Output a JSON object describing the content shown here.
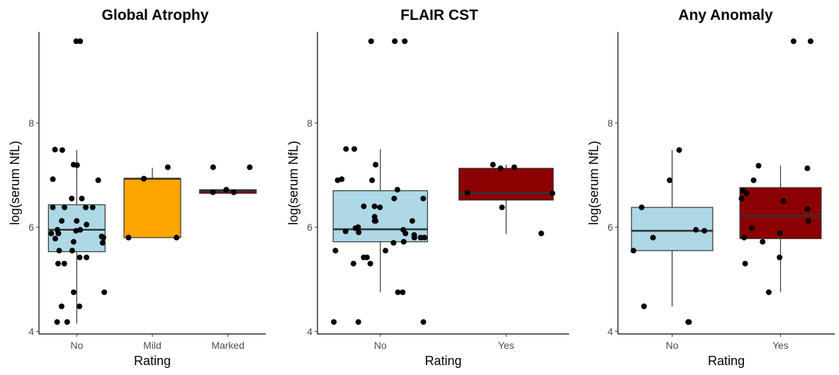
{
  "chart_data": [
    {
      "type": "box",
      "title": "Global Atrophy",
      "xlabel": "Rating",
      "ylabel": "log(serum NfL)",
      "ylim": [
        3.95,
        9.75
      ],
      "yticks": [
        4,
        6,
        8
      ],
      "grid": false,
      "categories": [
        "No",
        "Mild",
        "Marked"
      ],
      "boxes": [
        {
          "category": "No",
          "fill": "#add8e6",
          "whisker_low": 4.15,
          "q1": 5.53,
          "median": 5.95,
          "q3": 6.43,
          "whisker_high": 7.48
        },
        {
          "category": "Mild",
          "fill": "#ffa500",
          "whisker_low": 5.8,
          "q1": 5.8,
          "median": 6.93,
          "q3": 6.93,
          "whisker_high": 7.14
        },
        {
          "category": "Marked",
          "fill": "#8b0000",
          "whisker_low": 6.65,
          "q1": 6.65,
          "median": 6.7,
          "q3": 6.72,
          "whisker_high": 6.72
        }
      ],
      "points": [
        {
          "x": 1,
          "y": 9.57
        },
        {
          "x": 1,
          "y": 9.57
        },
        {
          "x": 1,
          "y": 7.49
        },
        {
          "x": 1,
          "y": 7.48
        },
        {
          "x": 1,
          "y": 7.2
        },
        {
          "x": 1,
          "y": 7.19
        },
        {
          "x": 1,
          "y": 6.92
        },
        {
          "x": 1,
          "y": 6.9
        },
        {
          "x": 1,
          "y": 6.55
        },
        {
          "x": 1,
          "y": 6.55
        },
        {
          "x": 1,
          "y": 6.38
        },
        {
          "x": 1,
          "y": 6.38
        },
        {
          "x": 1,
          "y": 6.38
        },
        {
          "x": 1,
          "y": 6.38
        },
        {
          "x": 1,
          "y": 6.12
        },
        {
          "x": 1,
          "y": 6.12
        },
        {
          "x": 1,
          "y": 6.05
        },
        {
          "x": 1,
          "y": 5.95
        },
        {
          "x": 1,
          "y": 5.95
        },
        {
          "x": 1,
          "y": 5.93
        },
        {
          "x": 1,
          "y": 5.88
        },
        {
          "x": 1,
          "y": 5.88
        },
        {
          "x": 1,
          "y": 5.82
        },
        {
          "x": 1,
          "y": 5.8
        },
        {
          "x": 1,
          "y": 5.78
        },
        {
          "x": 1,
          "y": 5.72
        },
        {
          "x": 1,
          "y": 5.7
        },
        {
          "x": 1,
          "y": 5.55
        },
        {
          "x": 1,
          "y": 5.55
        },
        {
          "x": 1,
          "y": 5.42
        },
        {
          "x": 1,
          "y": 5.42
        },
        {
          "x": 1,
          "y": 5.3
        },
        {
          "x": 1,
          "y": 5.3
        },
        {
          "x": 1,
          "y": 4.75
        },
        {
          "x": 1,
          "y": 4.75
        },
        {
          "x": 1,
          "y": 4.48
        },
        {
          "x": 1,
          "y": 4.48
        },
        {
          "x": 1,
          "y": 4.18
        },
        {
          "x": 1,
          "y": 4.18
        },
        {
          "x": 2,
          "y": 7.15
        },
        {
          "x": 2,
          "y": 6.93
        },
        {
          "x": 2,
          "y": 6.93
        },
        {
          "x": 2,
          "y": 5.8
        },
        {
          "x": 2,
          "y": 5.8
        },
        {
          "x": 3,
          "y": 7.15
        },
        {
          "x": 3,
          "y": 7.15
        },
        {
          "x": 3,
          "y": 6.72
        },
        {
          "x": 3,
          "y": 6.67
        },
        {
          "x": 3,
          "y": 6.67
        }
      ]
    },
    {
      "type": "box",
      "title": "FLAIR CST",
      "xlabel": "Rating",
      "ylabel": "log(serum NfL)",
      "ylim": [
        3.95,
        9.75
      ],
      "yticks": [
        4,
        6,
        8
      ],
      "grid": false,
      "categories": [
        "No",
        "Yes"
      ],
      "boxes": [
        {
          "category": "No",
          "fill": "#add8e6",
          "whisker_low": 4.75,
          "q1": 5.72,
          "median": 5.96,
          "q3": 6.7,
          "whisker_high": 7.5
        },
        {
          "category": "Yes",
          "fill": "#8b0000",
          "whisker_low": 5.87,
          "q1": 6.52,
          "median": 6.65,
          "q3": 7.13,
          "whisker_high": 7.2
        }
      ],
      "points": [
        {
          "x": 1,
          "y": 9.57
        },
        {
          "x": 1,
          "y": 9.57
        },
        {
          "x": 1,
          "y": 9.57
        },
        {
          "x": 1,
          "y": 7.5
        },
        {
          "x": 1,
          "y": 7.5
        },
        {
          "x": 1,
          "y": 7.2
        },
        {
          "x": 1,
          "y": 6.92
        },
        {
          "x": 1,
          "y": 6.9
        },
        {
          "x": 1,
          "y": 6.9
        },
        {
          "x": 1,
          "y": 6.72
        },
        {
          "x": 1,
          "y": 6.55
        },
        {
          "x": 1,
          "y": 6.55
        },
        {
          "x": 1,
          "y": 6.4
        },
        {
          "x": 1,
          "y": 6.4
        },
        {
          "x": 1,
          "y": 6.38
        },
        {
          "x": 1,
          "y": 6.2
        },
        {
          "x": 1,
          "y": 6.12
        },
        {
          "x": 1,
          "y": 6.12
        },
        {
          "x": 1,
          "y": 6.12
        },
        {
          "x": 1,
          "y": 6.0
        },
        {
          "x": 1,
          "y": 5.98
        },
        {
          "x": 1,
          "y": 5.95
        },
        {
          "x": 1,
          "y": 5.92
        },
        {
          "x": 1,
          "y": 5.9
        },
        {
          "x": 1,
          "y": 5.88
        },
        {
          "x": 1,
          "y": 5.85
        },
        {
          "x": 1,
          "y": 5.8
        },
        {
          "x": 1,
          "y": 5.8
        },
        {
          "x": 1,
          "y": 5.8
        },
        {
          "x": 1,
          "y": 5.72
        },
        {
          "x": 1,
          "y": 5.7
        },
        {
          "x": 1,
          "y": 5.55
        },
        {
          "x": 1,
          "y": 5.55
        },
        {
          "x": 1,
          "y": 5.42
        },
        {
          "x": 1,
          "y": 5.42
        },
        {
          "x": 1,
          "y": 5.3
        },
        {
          "x": 1,
          "y": 5.3
        },
        {
          "x": 1,
          "y": 4.75
        },
        {
          "x": 1,
          "y": 4.75
        },
        {
          "x": 1,
          "y": 4.18
        },
        {
          "x": 1,
          "y": 4.18
        },
        {
          "x": 1,
          "y": 4.18
        },
        {
          "x": 2,
          "y": 7.2
        },
        {
          "x": 2,
          "y": 7.15
        },
        {
          "x": 2,
          "y": 7.13
        },
        {
          "x": 2,
          "y": 6.66
        },
        {
          "x": 2,
          "y": 6.65
        },
        {
          "x": 2,
          "y": 6.38
        },
        {
          "x": 2,
          "y": 5.88
        }
      ]
    },
    {
      "type": "box",
      "title": "Any Anomaly",
      "xlabel": "Rating",
      "ylabel": "log(serum NfL)",
      "ylim": [
        3.95,
        9.75
      ],
      "yticks": [
        4,
        6,
        8
      ],
      "grid": false,
      "categories": [
        "No",
        "Yes"
      ],
      "boxes": [
        {
          "category": "No",
          "fill": "#add8e6",
          "whisker_low": 4.48,
          "q1": 5.55,
          "median": 5.93,
          "q3": 6.38,
          "whisker_high": 7.48
        },
        {
          "category": "Yes",
          "fill": "#8b0000",
          "whisker_low": 4.75,
          "q1": 5.78,
          "median": 6.22,
          "q3": 6.76,
          "whisker_high": 7.18
        }
      ],
      "points": [
        {
          "x": 1,
          "y": 7.48
        },
        {
          "x": 1,
          "y": 6.9
        },
        {
          "x": 1,
          "y": 6.38
        },
        {
          "x": 1,
          "y": 5.95
        },
        {
          "x": 1,
          "y": 5.93
        },
        {
          "x": 1,
          "y": 5.8
        },
        {
          "x": 1,
          "y": 5.55
        },
        {
          "x": 1,
          "y": 4.48
        },
        {
          "x": 1,
          "y": 4.18
        },
        {
          "x": 1,
          "y": 4.18
        },
        {
          "x": 2,
          "y": 9.57
        },
        {
          "x": 2,
          "y": 9.57
        },
        {
          "x": 2,
          "y": 7.18
        },
        {
          "x": 2,
          "y": 7.13
        },
        {
          "x": 2,
          "y": 6.9
        },
        {
          "x": 2,
          "y": 6.7
        },
        {
          "x": 2,
          "y": 6.65
        },
        {
          "x": 2,
          "y": 6.55
        },
        {
          "x": 2,
          "y": 6.5
        },
        {
          "x": 2,
          "y": 6.35
        },
        {
          "x": 2,
          "y": 6.12
        },
        {
          "x": 2,
          "y": 5.98
        },
        {
          "x": 2,
          "y": 5.88
        },
        {
          "x": 2,
          "y": 5.8
        },
        {
          "x": 2,
          "y": 5.72
        },
        {
          "x": 2,
          "y": 5.42
        },
        {
          "x": 2,
          "y": 5.3
        },
        {
          "x": 2,
          "y": 4.75
        }
      ]
    }
  ]
}
